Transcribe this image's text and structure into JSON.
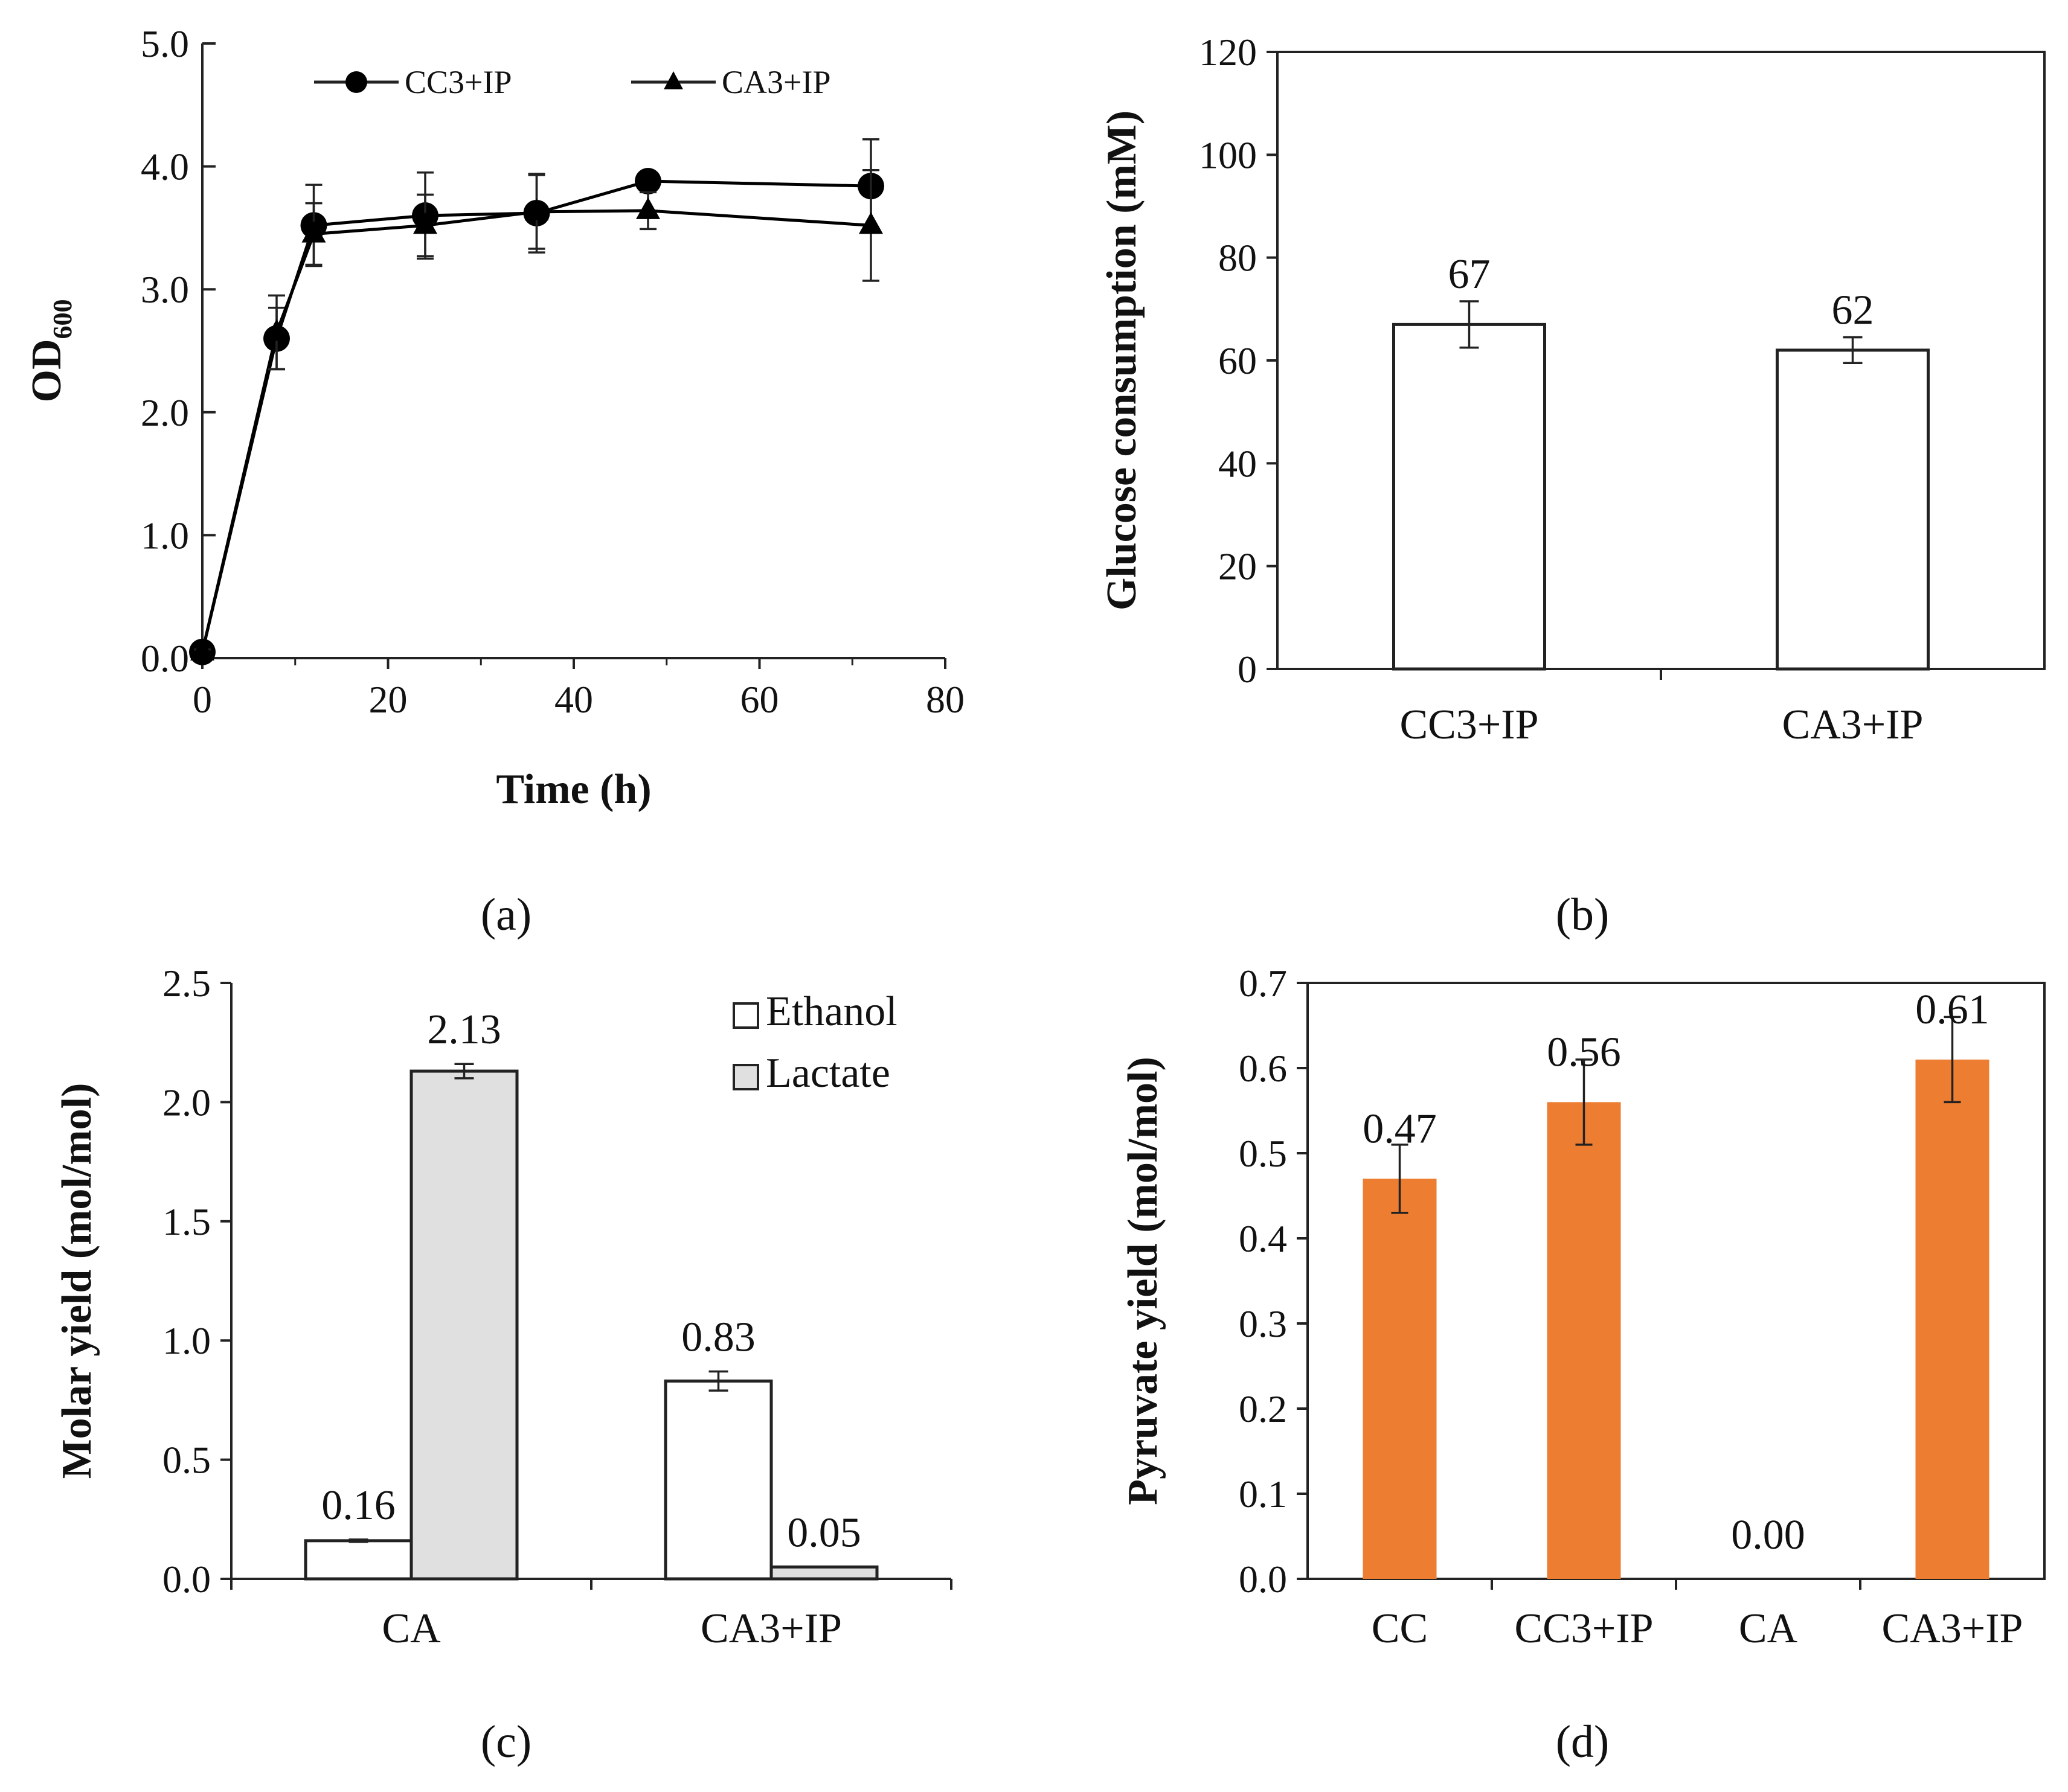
{
  "chart_data": [
    {
      "id": "a",
      "type": "line",
      "panel_label": "(a)",
      "xlabel": "Time (h)",
      "ylabel_main": "OD",
      "ylabel_sub": "600",
      "xlim": [
        0,
        80
      ],
      "ylim": [
        0,
        5
      ],
      "xticks": [
        "0",
        "20",
        "40",
        "60",
        "80"
      ],
      "yticks": [
        "0.0",
        "1.0",
        "2.0",
        "3.0",
        "4.0",
        "5.0"
      ],
      "x": [
        0,
        8,
        12,
        24,
        36,
        48,
        72
      ],
      "series": [
        {
          "name": "CC3+IP",
          "marker": "circle",
          "values": [
            0.05,
            2.6,
            3.52,
            3.6,
            3.62,
            3.88,
            3.84
          ],
          "errors": [
            0.02,
            0.25,
            0.33,
            0.35,
            0.32,
            0.05,
            0.38
          ]
        },
        {
          "name": "CA3+IP",
          "marker": "triangle",
          "values": [
            0.05,
            2.65,
            3.45,
            3.52,
            3.63,
            3.64,
            3.52
          ],
          "errors": [
            0.02,
            0.3,
            0.25,
            0.25,
            0.3,
            0.15,
            0.45
          ]
        }
      ]
    },
    {
      "id": "b",
      "type": "bar",
      "panel_label": "(b)",
      "ylabel": "Glucose consumption  (mM)",
      "ylim": [
        0,
        120
      ],
      "yticks": [
        "0",
        "20",
        "40",
        "60",
        "80",
        "100",
        "120"
      ],
      "categories": [
        "CC3+IP",
        "CA3+IP"
      ],
      "values": [
        67,
        62
      ],
      "errors": [
        4.5,
        2.5
      ],
      "data_labels": [
        "67",
        "62"
      ]
    },
    {
      "id": "c",
      "type": "bar",
      "panel_label": "(c)",
      "ylabel": "Molar yield (mol/mol)",
      "ylim": [
        0,
        2.5
      ],
      "yticks": [
        "0.0",
        "0.5",
        "1.0",
        "1.5",
        "2.0",
        "2.5"
      ],
      "categories": [
        "CA",
        "CA3+IP"
      ],
      "series": [
        {
          "name": "Ethanol",
          "color": "#ffffff",
          "values": [
            0.16,
            0.83
          ],
          "errors": [
            0.005,
            0.04
          ],
          "data_labels": [
            "0.16",
            "0.83"
          ]
        },
        {
          "name": "Lactate",
          "color": "#e0e0e0",
          "values": [
            2.13,
            0.05
          ],
          "errors": [
            0.03,
            0.0
          ],
          "data_labels": [
            "2.13",
            "0.05"
          ]
        }
      ]
    },
    {
      "id": "d",
      "type": "bar",
      "panel_label": "(d)",
      "ylabel": "Pyruvate yield (mol/mol)",
      "ylim": [
        0,
        0.7
      ],
      "yticks": [
        "0.0",
        "0.1",
        "0.2",
        "0.3",
        "0.4",
        "0.5",
        "0.6",
        "0.7"
      ],
      "categories": [
        "CC",
        "CC3+IP",
        "CA",
        "CA3+IP"
      ],
      "values": [
        0.47,
        0.56,
        0.0,
        0.61
      ],
      "errors": [
        0.04,
        0.05,
        0,
        0.05
      ],
      "data_labels": [
        "0.47",
        "0.56",
        "0.00",
        "0.61"
      ],
      "bar_color": "#ed7d31"
    }
  ]
}
